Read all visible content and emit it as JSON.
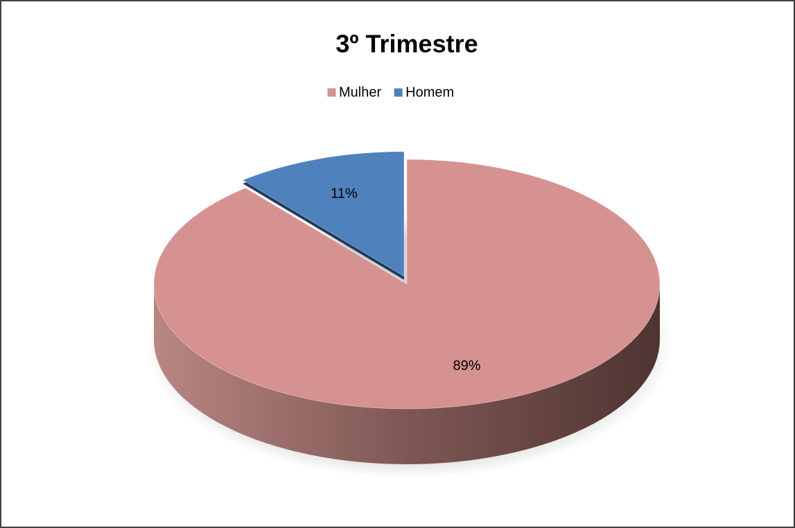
{
  "chart_data": {
    "type": "pie",
    "title": "3º Trimestre",
    "categories": [
      "Mulher",
      "Homem"
    ],
    "values": [
      89,
      11
    ],
    "value_labels": [
      "89%",
      "11%"
    ],
    "colors": [
      "#d59290",
      "#4f81bd"
    ],
    "legend": "top"
  }
}
